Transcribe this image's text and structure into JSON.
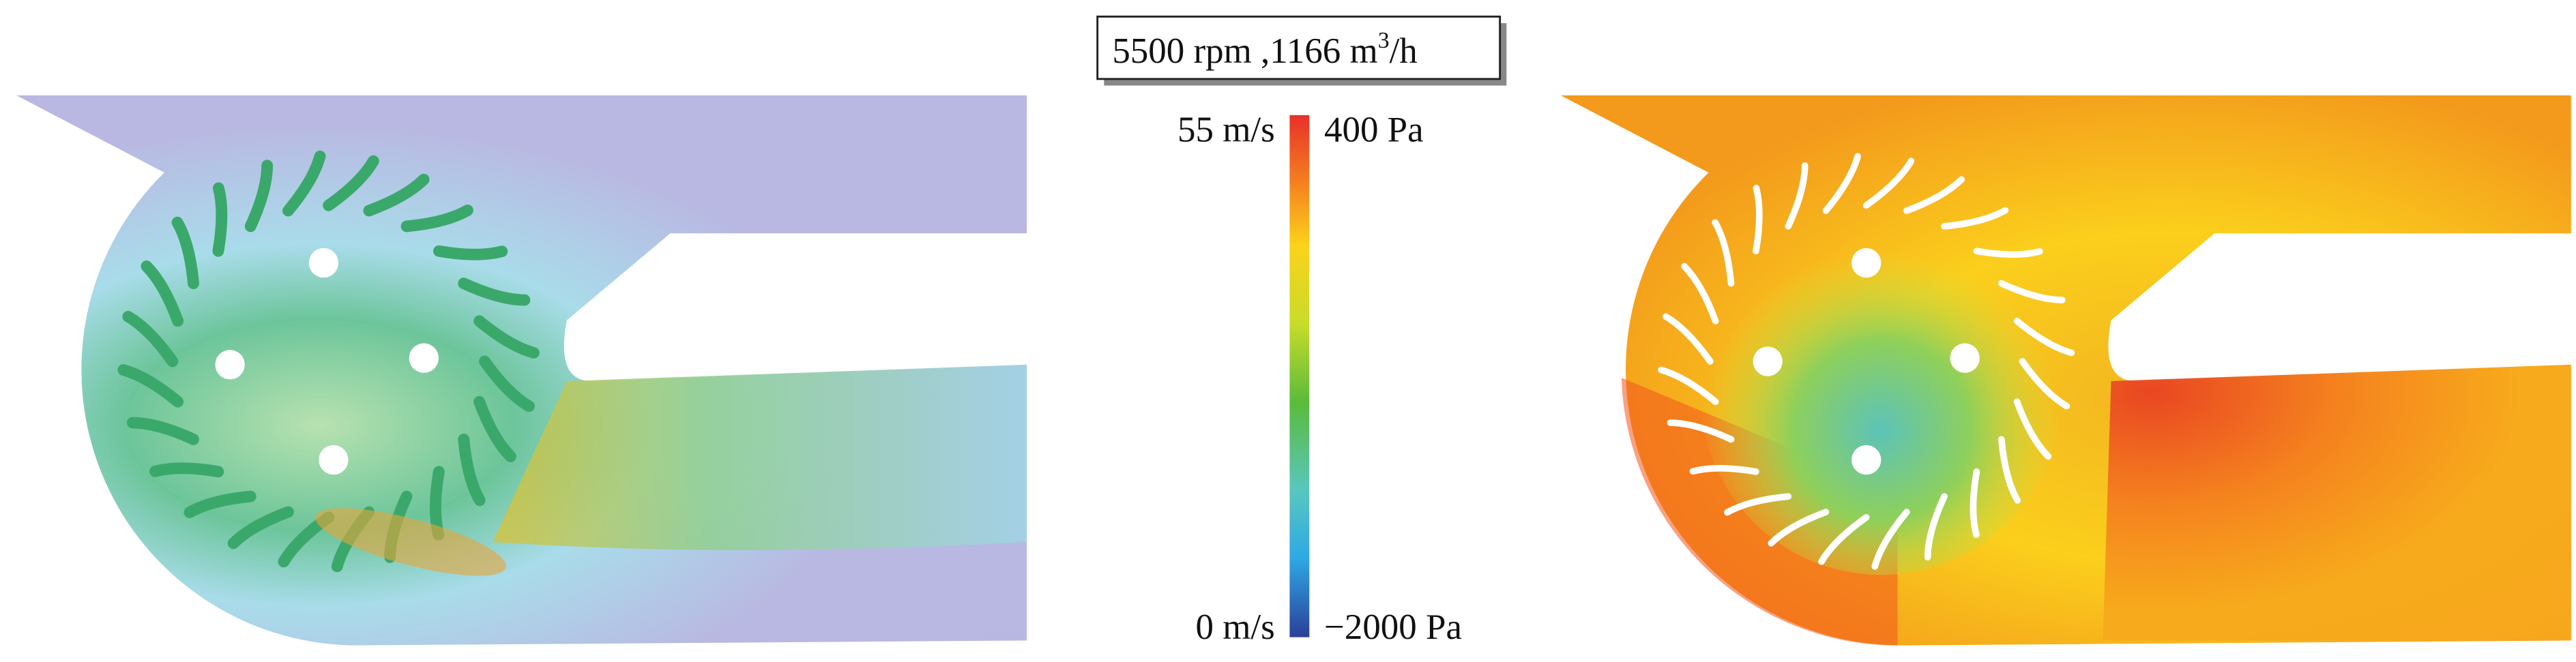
{
  "title": [
    "5500 rpm ,1166 m",
    "3",
    "/h"
  ],
  "colorbar": {
    "left_top": "55 m/s",
    "left_bottom": "0 m/s",
    "right_top": "400 Pa",
    "right_bottom": "−2000 Pa"
  }
}
